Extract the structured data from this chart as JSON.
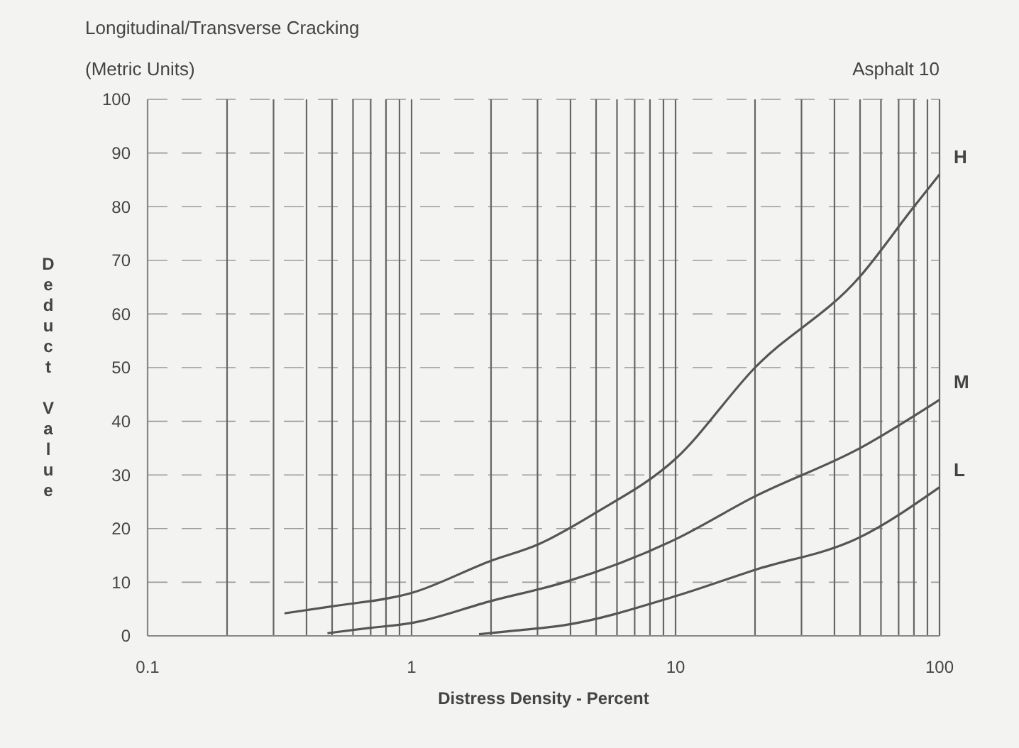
{
  "chart_data": {
    "type": "line",
    "title": "Longitudinal/Transverse Cracking",
    "subtitle": "(Metric Units)",
    "annotations": [
      "Asphalt 10"
    ],
    "xlabel": "Distress Density - Percent",
    "ylabel": "Deduct Value",
    "log": "x",
    "grid": true,
    "marker": "none",
    "line_style": "solid",
    "xlim": [
      0.1,
      100
    ],
    "ylim": [
      0,
      100
    ],
    "xticks": [
      0.1,
      {
        "value": 0.2,
        "label": null
      },
      {
        "value": 0.3,
        "label": null
      },
      {
        "value": 0.4,
        "label": null
      },
      {
        "value": 0.5,
        "label": null
      },
      {
        "value": 0.6,
        "label": null
      },
      {
        "value": 0.7,
        "label": null
      },
      {
        "value": 0.8,
        "label": null
      },
      {
        "value": 0.9,
        "label": null
      },
      1,
      {
        "value": 2,
        "label": null
      },
      {
        "value": 3,
        "label": null
      },
      {
        "value": 4,
        "label": null
      },
      {
        "value": 5,
        "label": null
      },
      {
        "value": 6,
        "label": null
      },
      {
        "value": 7,
        "label": null
      },
      {
        "value": 8,
        "label": null
      },
      {
        "value": 9,
        "label": null
      },
      10,
      {
        "value": 20,
        "label": null
      },
      {
        "value": 30,
        "label": null
      },
      {
        "value": 40,
        "label": null
      },
      {
        "value": 50,
        "label": null
      },
      {
        "value": 60,
        "label": null
      },
      {
        "value": 70,
        "label": null
      },
      {
        "value": 80,
        "label": null
      },
      {
        "value": 90,
        "label": null
      },
      100
    ],
    "yticks": [
      0,
      10,
      20,
      30,
      40,
      50,
      60,
      70,
      80,
      90,
      100
    ],
    "series": [
      {
        "name": "H",
        "color": "#555555",
        "x": [
          0.33,
          0.5,
          1,
          2,
          3,
          5,
          10,
          20,
          50,
          80,
          100
        ],
        "values": [
          4.2,
          5.5,
          8,
          14,
          17,
          23,
          33,
          50,
          67,
          80,
          86
        ]
      },
      {
        "name": "M",
        "color": "#555555",
        "x": [
          0.48,
          0.7,
          1,
          2,
          3.8,
          10,
          20,
          50,
          100
        ],
        "values": [
          0.5,
          1.5,
          2.4,
          6.5,
          10,
          18,
          26,
          35,
          44
        ]
      },
      {
        "name": "L",
        "color": "#555555",
        "x": [
          1.8,
          2.5,
          3.8,
          10,
          20,
          50,
          100
        ],
        "values": [
          0.3,
          1,
          2,
          7.4,
          12.3,
          18.4,
          27.7
        ]
      }
    ]
  }
}
